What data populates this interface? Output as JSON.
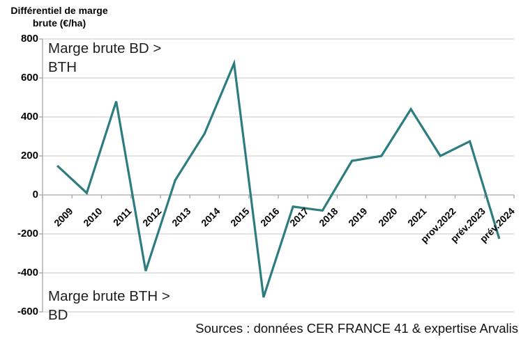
{
  "chart_data": {
    "type": "line",
    "title": "Différentiel de marge brute (€/ha)",
    "categories": [
      "2009",
      "2010",
      "2011",
      "2012",
      "2013",
      "2014",
      "2015",
      "2016",
      "2017",
      "2018",
      "2019",
      "2020",
      "2021",
      "prov.2022",
      "prév.2023",
      "prév.2024"
    ],
    "values": [
      150,
      10,
      480,
      -390,
      75,
      315,
      675,
      -525,
      -60,
      -80,
      175,
      200,
      440,
      200,
      275,
      -225
    ],
    "yticks": [
      800,
      600,
      400,
      200,
      0,
      -200,
      -400,
      -600
    ],
    "ylim": [
      -600,
      800
    ],
    "xlabel": "",
    "ylabel": "Différentiel de marge brute (€/ha)",
    "grid": "horizontal",
    "legend_position": "none",
    "annotations": {
      "top": "Marge brute BD > BTH",
      "bottom": "Marge brute BTH > BD"
    },
    "source": "Sources : données CER FRANCE 41 & expertise Arvalis",
    "colors": {
      "line": "#2D7C7F",
      "gridline": "#C8C8C8",
      "axis": "#A6A6A6",
      "text": "#000000"
    }
  }
}
